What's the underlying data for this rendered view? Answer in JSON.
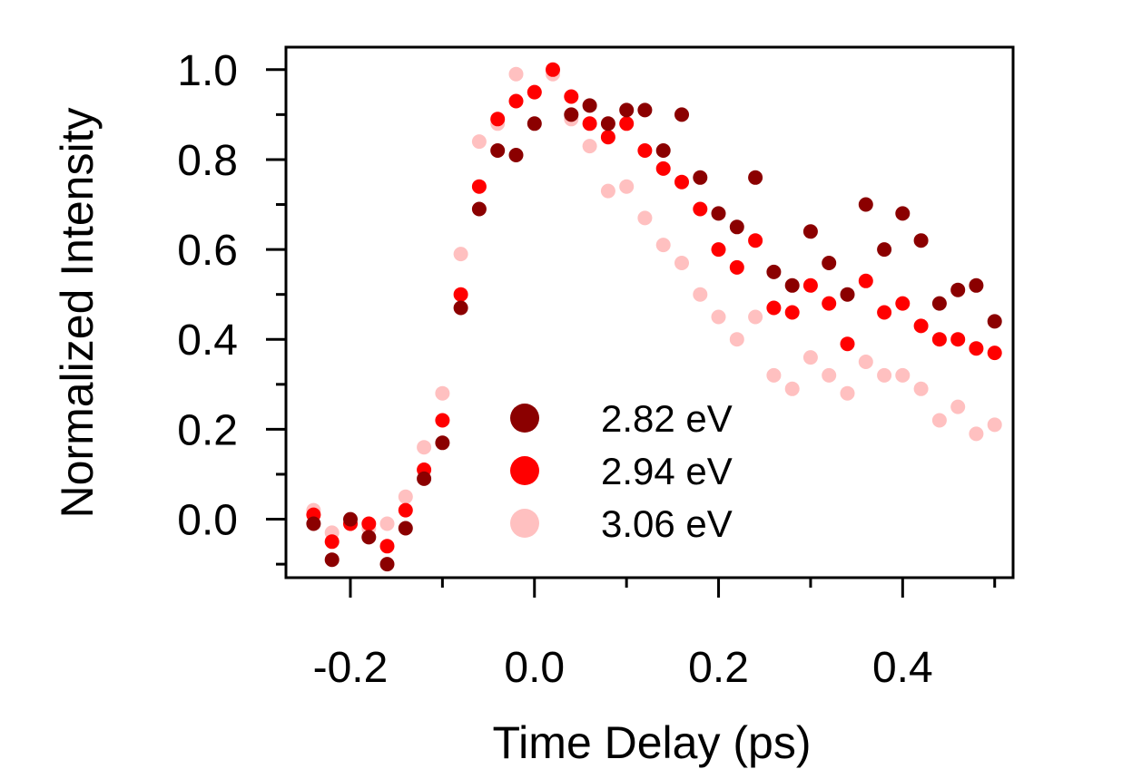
{
  "chart_data": {
    "type": "scatter",
    "title": "",
    "xlabel": "Time Delay (ps)",
    "ylabel": "Normalized Intensity",
    "xlim": [
      -0.27,
      0.52
    ],
    "ylim": [
      -0.13,
      1.05
    ],
    "xticks": [
      -0.2,
      0.0,
      0.2,
      0.4
    ],
    "xtick_labels": [
      "-0.2",
      "0.0",
      "0.2",
      "0.4"
    ],
    "yticks": [
      0.0,
      0.2,
      0.4,
      0.6,
      0.8,
      1.0
    ],
    "ytick_labels": [
      "0.0",
      "0.2",
      "0.4",
      "0.6",
      "0.8",
      "1.0"
    ],
    "grid": false,
    "legend_position": "bottom-center",
    "series": [
      {
        "name": "2.82 eV",
        "color": "#8b0000",
        "x": [
          -0.24,
          -0.22,
          -0.2,
          -0.18,
          -0.16,
          -0.14,
          -0.12,
          -0.1,
          -0.08,
          -0.06,
          -0.04,
          -0.02,
          0.0,
          0.04,
          0.06,
          0.08,
          0.1,
          0.12,
          0.14,
          0.16,
          0.18,
          0.2,
          0.22,
          0.24,
          0.26,
          0.28,
          0.3,
          0.32,
          0.34,
          0.36,
          0.38,
          0.4,
          0.42,
          0.44,
          0.46,
          0.48,
          0.5
        ],
        "y": [
          -0.01,
          -0.09,
          0.0,
          -0.04,
          -0.1,
          -0.02,
          0.09,
          0.17,
          0.47,
          0.69,
          0.82,
          0.81,
          0.88,
          0.9,
          0.92,
          0.88,
          0.91,
          0.91,
          0.82,
          0.9,
          0.76,
          0.68,
          0.65,
          0.76,
          0.55,
          0.52,
          0.64,
          0.57,
          0.5,
          0.7,
          0.6,
          0.68,
          0.62,
          0.48,
          0.51,
          0.52,
          0.44
        ]
      },
      {
        "name": "2.94 eV",
        "color": "#ff0000",
        "x": [
          -0.24,
          -0.22,
          -0.2,
          -0.18,
          -0.16,
          -0.14,
          -0.12,
          -0.1,
          -0.08,
          -0.06,
          -0.04,
          -0.02,
          0.0,
          0.02,
          0.04,
          0.06,
          0.08,
          0.1,
          0.12,
          0.14,
          0.16,
          0.18,
          0.2,
          0.22,
          0.24,
          0.26,
          0.28,
          0.3,
          0.32,
          0.34,
          0.36,
          0.38,
          0.4,
          0.42,
          0.44,
          0.46,
          0.48,
          0.5
        ],
        "y": [
          0.01,
          -0.05,
          -0.01,
          -0.01,
          -0.06,
          0.02,
          0.11,
          0.22,
          0.5,
          0.74,
          0.89,
          0.93,
          0.95,
          1.0,
          0.94,
          0.88,
          0.85,
          0.88,
          0.82,
          0.78,
          0.75,
          0.69,
          0.6,
          0.56,
          0.62,
          0.47,
          0.46,
          0.52,
          0.48,
          0.39,
          0.53,
          0.46,
          0.48,
          0.43,
          0.4,
          0.4,
          0.38,
          0.37
        ]
      },
      {
        "name": "3.06 eV",
        "color": "#ffc0c0",
        "x": [
          -0.24,
          -0.22,
          -0.2,
          -0.18,
          -0.16,
          -0.14,
          -0.12,
          -0.1,
          -0.08,
          -0.06,
          -0.04,
          -0.02,
          0.0,
          0.02,
          0.04,
          0.06,
          0.08,
          0.1,
          0.12,
          0.14,
          0.16,
          0.18,
          0.2,
          0.22,
          0.24,
          0.26,
          0.28,
          0.3,
          0.32,
          0.34,
          0.36,
          0.38,
          0.4,
          0.42,
          0.44,
          0.46,
          0.48,
          0.5
        ],
        "y": [
          0.02,
          -0.03,
          -0.01,
          -0.02,
          -0.01,
          0.05,
          0.16,
          0.28,
          0.59,
          0.84,
          0.88,
          0.99,
          0.95,
          0.99,
          0.89,
          0.83,
          0.73,
          0.74,
          0.67,
          0.61,
          0.57,
          0.5,
          0.45,
          0.4,
          0.45,
          0.32,
          0.29,
          0.36,
          0.32,
          0.28,
          0.35,
          0.32,
          0.32,
          0.29,
          0.22,
          0.25,
          0.19,
          0.21
        ]
      }
    ]
  }
}
